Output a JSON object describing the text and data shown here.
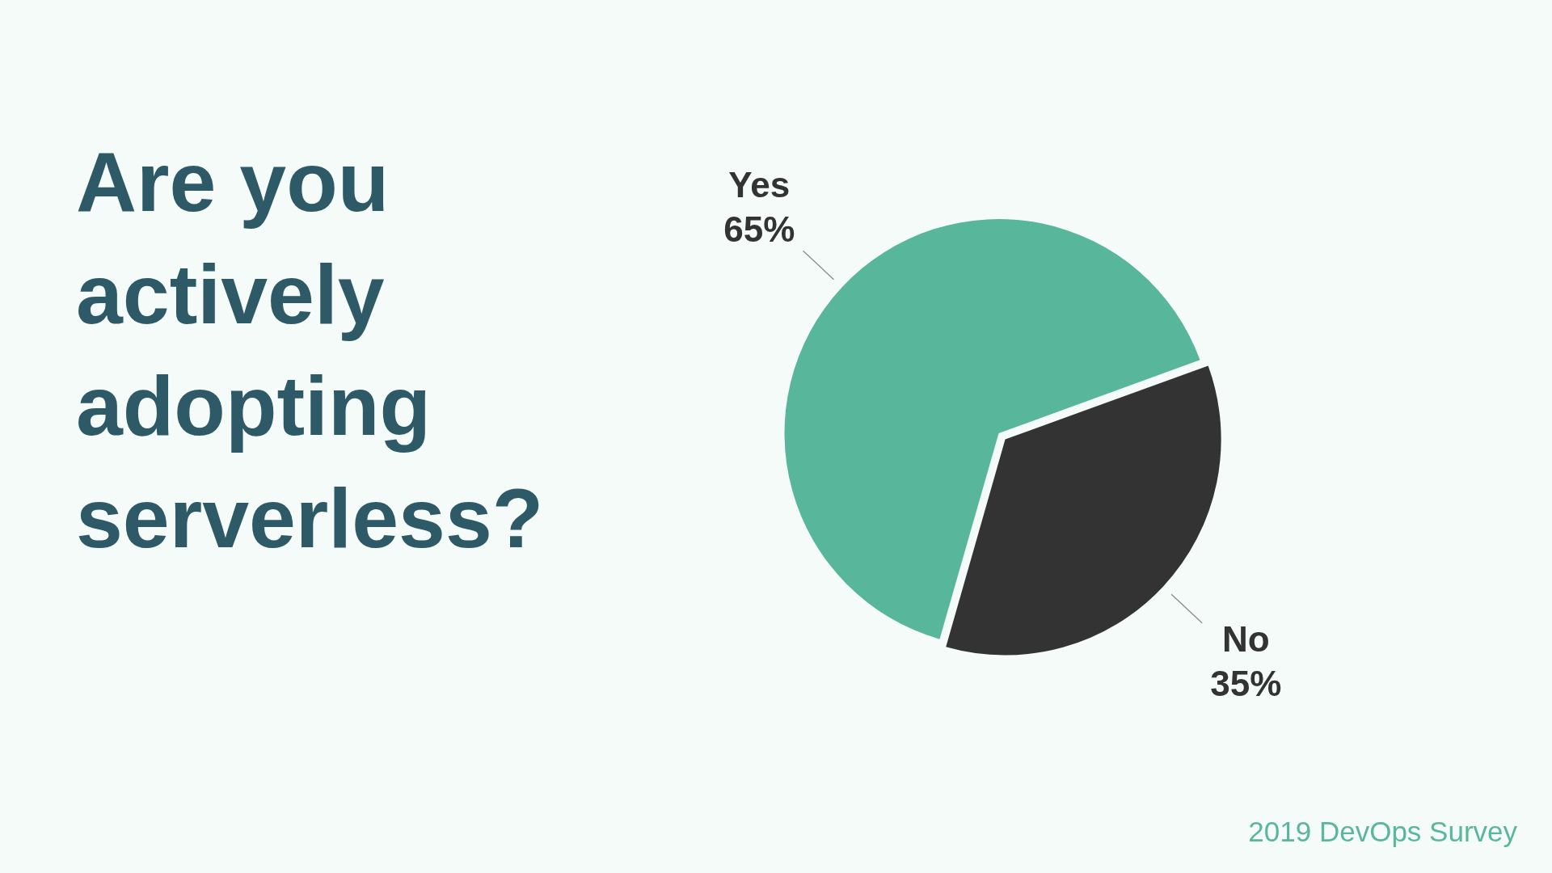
{
  "chart_data": {
    "type": "pie",
    "title": "Are you actively adopting serverless?",
    "categories": [
      "Yes",
      "No"
    ],
    "values": [
      65,
      35
    ],
    "colors": [
      "#58b69b",
      "#333333"
    ],
    "value_labels": [
      "65%",
      "35%"
    ],
    "annotations": [
      "2019 DevOps Survey"
    ]
  }
}
